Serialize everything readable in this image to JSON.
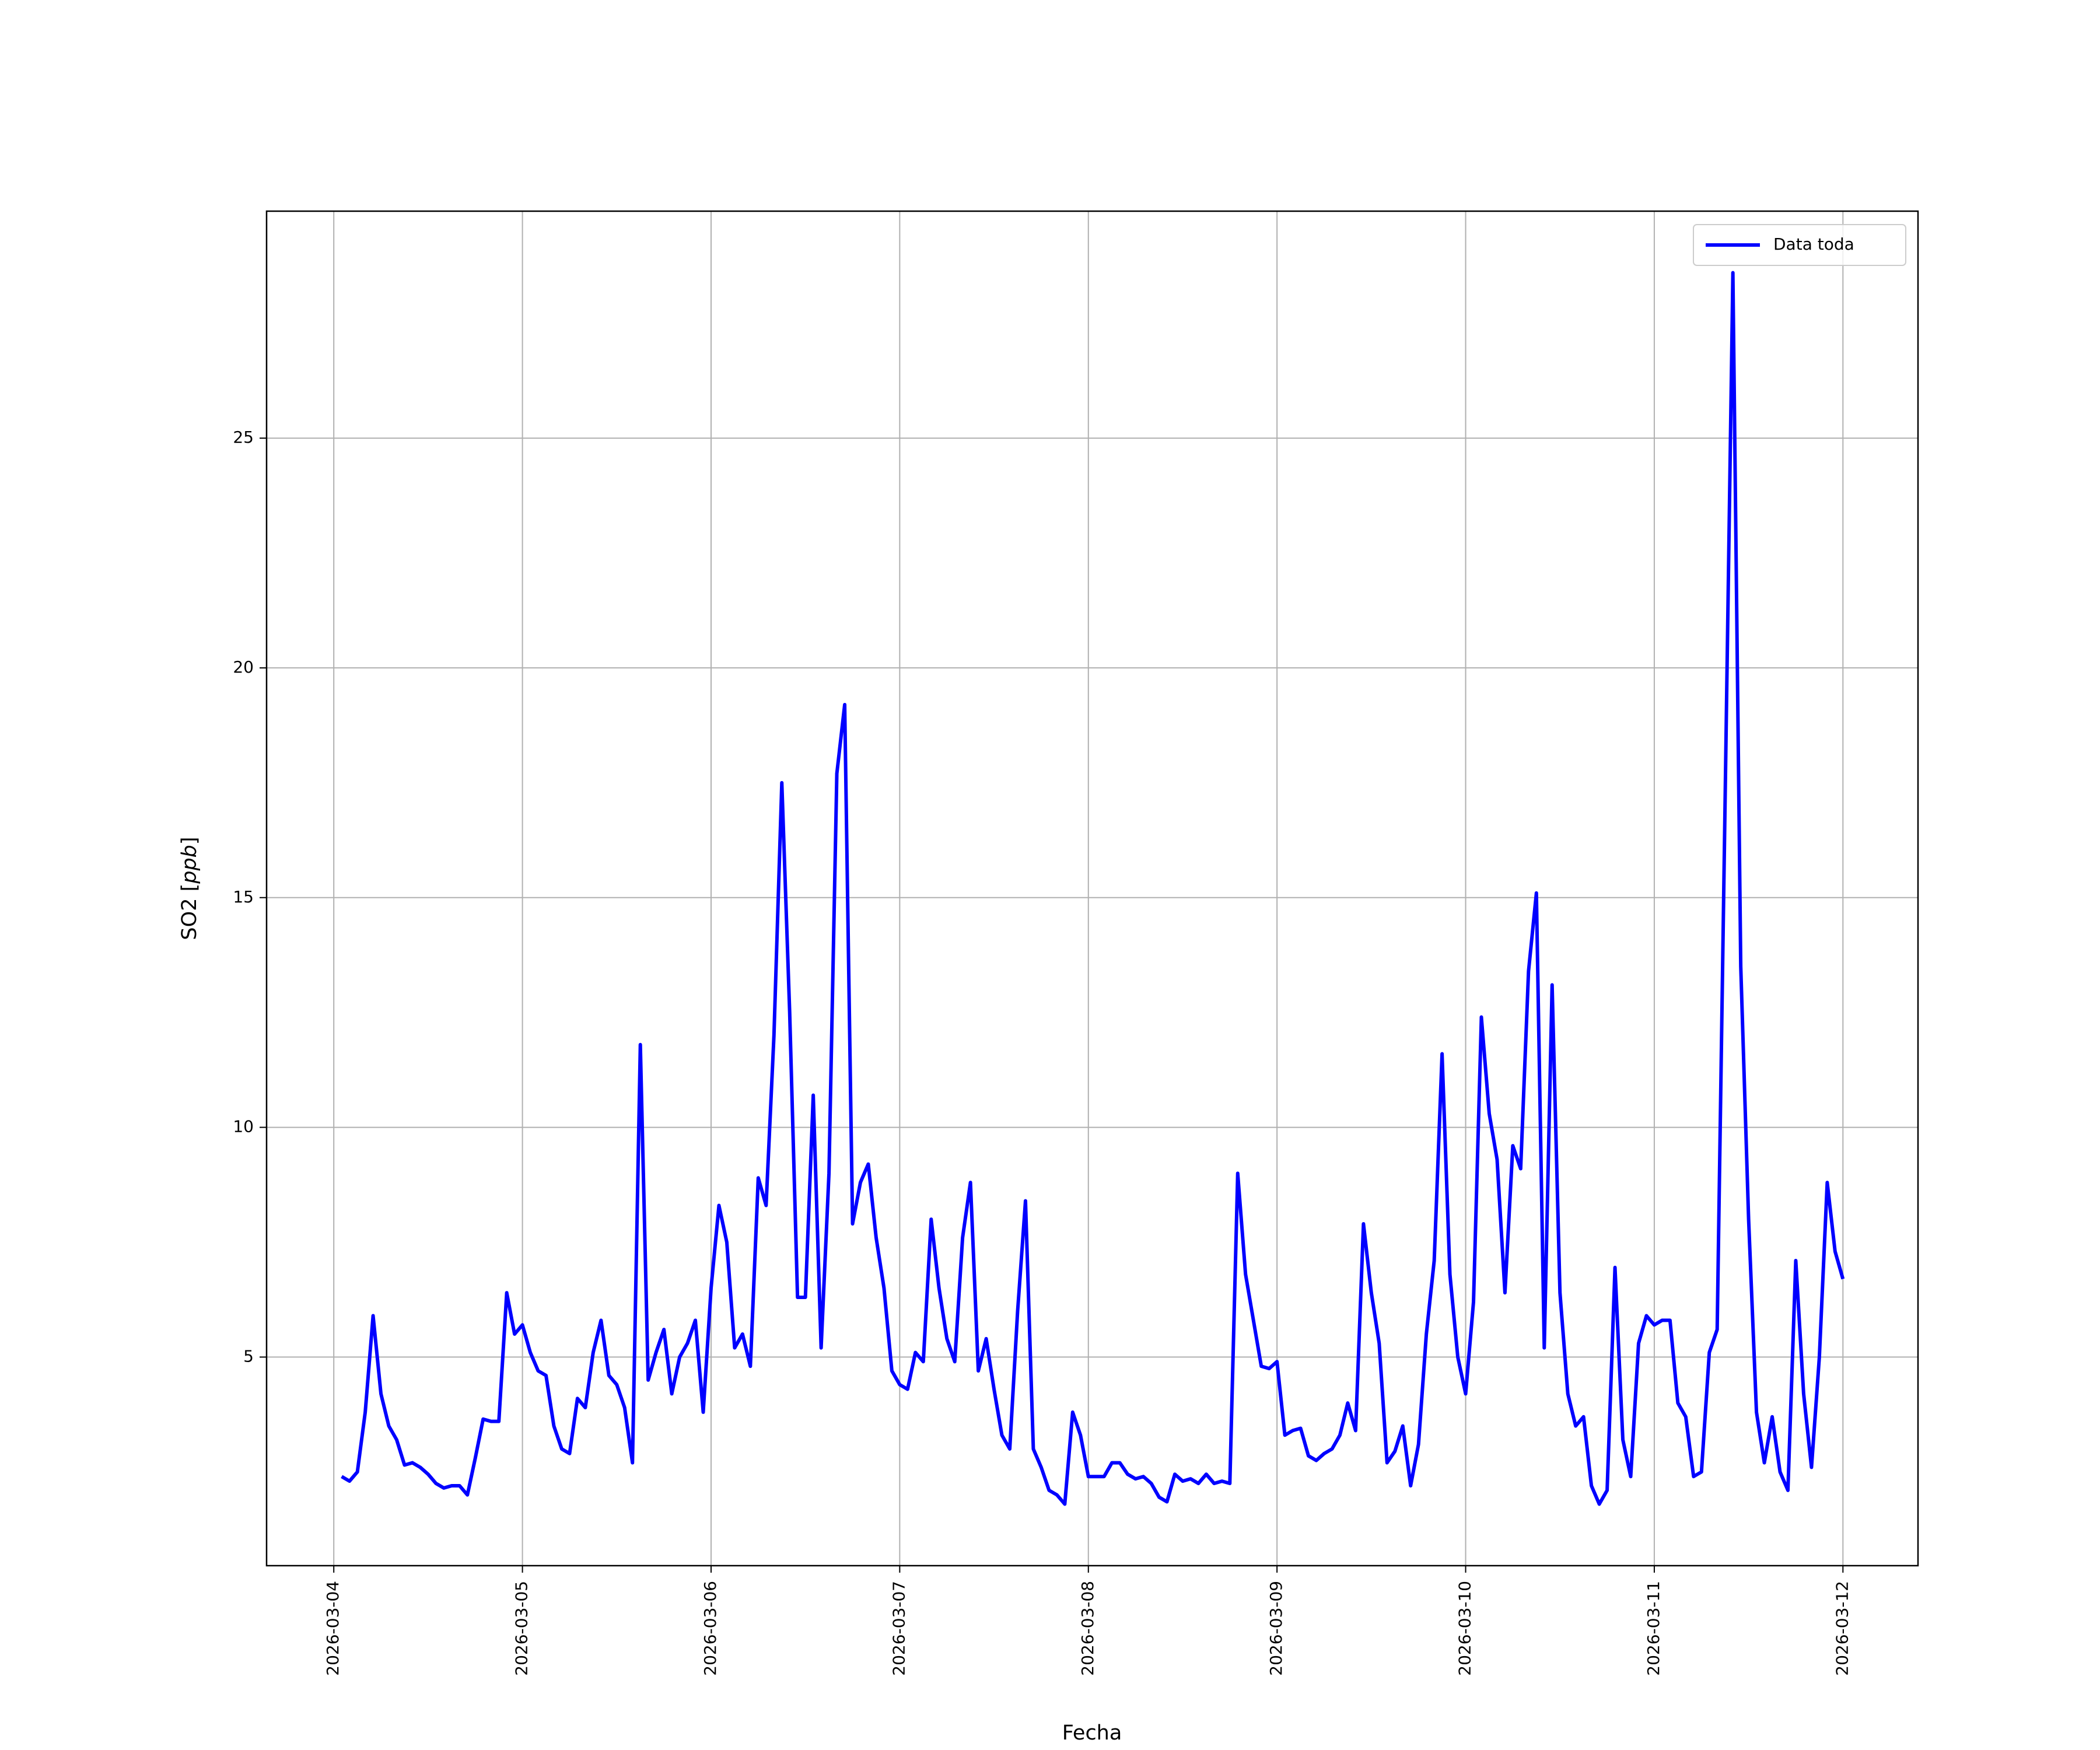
{
  "chart_data": {
    "type": "line",
    "xlabel": "Fecha",
    "ylabel": [
      "SO2 [",
      "ppb",
      "]"
    ],
    "grid": true,
    "legend": "upper right",
    "xlim": [
      "2026-03-03 15:27",
      "2026-03-12 09:33"
    ],
    "ylim": [
      0.46,
      29.94
    ],
    "yticks": [
      5,
      10,
      15,
      20,
      25
    ],
    "xticks": [
      "2026-03-04",
      "2026-03-05",
      "2026-03-06",
      "2026-03-07",
      "2026-03-08",
      "2026-03-09",
      "2026-03-10",
      "2026-03-11",
      "2026-03-12"
    ],
    "x": [
      "2026-03-04 01:00",
      "2026-03-04 02:00",
      "2026-03-04 03:00",
      "2026-03-04 04:00",
      "2026-03-04 05:00",
      "2026-03-04 06:00",
      "2026-03-04 07:00",
      "2026-03-04 08:00",
      "2026-03-04 09:00",
      "2026-03-04 10:00",
      "2026-03-04 11:00",
      "2026-03-04 12:00",
      "2026-03-04 13:00",
      "2026-03-04 14:00",
      "2026-03-04 15:00",
      "2026-03-04 16:00",
      "2026-03-04 17:00",
      "2026-03-04 18:00",
      "2026-03-04 19:00",
      "2026-03-04 20:00",
      "2026-03-04 21:00",
      "2026-03-04 22:00",
      "2026-03-04 23:00",
      "2026-03-05 00:00",
      "2026-03-05 01:00",
      "2026-03-05 02:00",
      "2026-03-05 03:00",
      "2026-03-05 04:00",
      "2026-03-05 05:00",
      "2026-03-05 06:00",
      "2026-03-05 07:00",
      "2026-03-05 08:00",
      "2026-03-05 09:00",
      "2026-03-05 10:00",
      "2026-03-05 11:00",
      "2026-03-05 12:00",
      "2026-03-05 13:00",
      "2026-03-05 14:00",
      "2026-03-05 15:00",
      "2026-03-05 16:00",
      "2026-03-05 17:00",
      "2026-03-05 18:00",
      "2026-03-05 19:00",
      "2026-03-05 20:00",
      "2026-03-05 21:00",
      "2026-03-05 22:00",
      "2026-03-05 23:00",
      "2026-03-06 00:00",
      "2026-03-06 01:00",
      "2026-03-06 02:00",
      "2026-03-06 03:00",
      "2026-03-06 04:00",
      "2026-03-06 05:00",
      "2026-03-06 06:00",
      "2026-03-06 07:00",
      "2026-03-06 08:00",
      "2026-03-06 09:00",
      "2026-03-06 10:00",
      "2026-03-06 11:00",
      "2026-03-06 12:00",
      "2026-03-06 13:00",
      "2026-03-06 14:00",
      "2026-03-06 15:00",
      "2026-03-06 16:00",
      "2026-03-06 17:00",
      "2026-03-06 18:00",
      "2026-03-06 19:00",
      "2026-03-06 20:00",
      "2026-03-06 21:00",
      "2026-03-06 22:00",
      "2026-03-06 23:00",
      "2026-03-07 00:00",
      "2026-03-07 01:00",
      "2026-03-07 02:00",
      "2026-03-07 03:00",
      "2026-03-07 04:00",
      "2026-03-07 05:00",
      "2026-03-07 06:00",
      "2026-03-07 07:00",
      "2026-03-07 08:00",
      "2026-03-07 09:00",
      "2026-03-07 10:00",
      "2026-03-07 11:00",
      "2026-03-07 12:00",
      "2026-03-07 13:00",
      "2026-03-07 14:00",
      "2026-03-07 15:00",
      "2026-03-07 16:00",
      "2026-03-07 17:00",
      "2026-03-07 18:00",
      "2026-03-07 19:00",
      "2026-03-07 20:00",
      "2026-03-07 21:00",
      "2026-03-07 22:00",
      "2026-03-07 23:00",
      "2026-03-08 00:00",
      "2026-03-08 01:00",
      "2026-03-08 02:00",
      "2026-03-08 03:00",
      "2026-03-08 04:00",
      "2026-03-08 05:00",
      "2026-03-08 06:00",
      "2026-03-08 07:00",
      "2026-03-08 08:00",
      "2026-03-08 09:00",
      "2026-03-08 10:00",
      "2026-03-08 11:00",
      "2026-03-08 12:00",
      "2026-03-08 13:00",
      "2026-03-08 14:00",
      "2026-03-08 15:00",
      "2026-03-08 16:00",
      "2026-03-08 17:00",
      "2026-03-08 18:00",
      "2026-03-08 19:00",
      "2026-03-08 20:00",
      "2026-03-08 21:00",
      "2026-03-08 22:00",
      "2026-03-08 23:00",
      "2026-03-09 00:00",
      "2026-03-09 01:00",
      "2026-03-09 02:00",
      "2026-03-09 03:00",
      "2026-03-09 04:00",
      "2026-03-09 05:00",
      "2026-03-09 06:00",
      "2026-03-09 07:00",
      "2026-03-09 08:00",
      "2026-03-09 09:00",
      "2026-03-09 10:00",
      "2026-03-09 11:00",
      "2026-03-09 12:00",
      "2026-03-09 13:00",
      "2026-03-09 14:00",
      "2026-03-09 15:00",
      "2026-03-09 16:00",
      "2026-03-09 17:00",
      "2026-03-09 18:00",
      "2026-03-09 19:00",
      "2026-03-09 20:00",
      "2026-03-09 21:00",
      "2026-03-09 22:00",
      "2026-03-09 23:00",
      "2026-03-10 00:00",
      "2026-03-10 01:00",
      "2026-03-10 02:00",
      "2026-03-10 03:00",
      "2026-03-10 04:00",
      "2026-03-10 05:00",
      "2026-03-10 06:00",
      "2026-03-10 07:00",
      "2026-03-10 08:00",
      "2026-03-10 09:00",
      "2026-03-10 10:00",
      "2026-03-10 11:00",
      "2026-03-10 12:00",
      "2026-03-10 13:00",
      "2026-03-10 14:00",
      "2026-03-10 15:00",
      "2026-03-10 16:00",
      "2026-03-10 17:00",
      "2026-03-10 18:00",
      "2026-03-10 19:00",
      "2026-03-10 20:00",
      "2026-03-10 21:00",
      "2026-03-10 22:00",
      "2026-03-10 23:00",
      "2026-03-11 00:00",
      "2026-03-11 01:00",
      "2026-03-11 02:00",
      "2026-03-11 03:00",
      "2026-03-11 04:00",
      "2026-03-11 05:00",
      "2026-03-11 06:00",
      "2026-03-11 07:00",
      "2026-03-11 08:00",
      "2026-03-11 09:00",
      "2026-03-11 10:00",
      "2026-03-11 11:00",
      "2026-03-11 12:00",
      "2026-03-11 13:00",
      "2026-03-11 14:00",
      "2026-03-11 15:00",
      "2026-03-11 16:00",
      "2026-03-11 17:00",
      "2026-03-11 18:00",
      "2026-03-11 19:00",
      "2026-03-11 20:00",
      "2026-03-11 21:00",
      "2026-03-11 22:00",
      "2026-03-11 23:00",
      "2026-03-12 00:00"
    ],
    "series": [
      {
        "name": "Data toda",
        "color": "#0000ff",
        "values": [
          2.4,
          2.3,
          2.5,
          3.8,
          5.9,
          4.2,
          3.5,
          3.2,
          2.65,
          2.7,
          2.6,
          2.45,
          2.25,
          2.15,
          2.2,
          2.2,
          2.0,
          2.8,
          3.65,
          3.6,
          3.6,
          6.4,
          5.5,
          5.7,
          5.1,
          4.7,
          4.6,
          3.5,
          3.0,
          2.9,
          4.1,
          3.9,
          5.1,
          5.8,
          4.6,
          4.4,
          3.9,
          2.7,
          11.8,
          4.5,
          5.1,
          5.6,
          4.2,
          5.0,
          5.3,
          5.8,
          3.8,
          6.5,
          8.3,
          7.5,
          5.2,
          5.5,
          4.8,
          8.9,
          8.3,
          12,
          17.5,
          12.5,
          6.3,
          6.3,
          10.7,
          5.2,
          9,
          17.7,
          19.2,
          7.9,
          8.8,
          9.2,
          7.6,
          6.5,
          4.7,
          4.4,
          4.3,
          5.1,
          4.9,
          8.0,
          6.5,
          5.4,
          4.9,
          7.6,
          8.8,
          4.7,
          5.4,
          4.3,
          3.3,
          3.0,
          6,
          8.4,
          3.0,
          2.6,
          2.1,
          2.0,
          1.8,
          3.8,
          3.3,
          2.4,
          2.4,
          2.4,
          2.7,
          2.7,
          2.45,
          2.35,
          2.4,
          2.25,
          1.95,
          1.85,
          2.45,
          2.3,
          2.35,
          2.25,
          2.45,
          2.25,
          2.3,
          2.25,
          9.0,
          6.8,
          5.8,
          4.8,
          4.75,
          4.9,
          3.3,
          3.4,
          3.45,
          2.85,
          2.75,
          2.9,
          3.0,
          3.3,
          4.0,
          3.4,
          7.9,
          6.4,
          5.3,
          2.7,
          2.95,
          3.5,
          2.2,
          3.1,
          5.5,
          7.1,
          11.6,
          6.8,
          5.0,
          4.2,
          6.2,
          12.4,
          10.3,
          9.3,
          6.4,
          9.6,
          9.1,
          13.4,
          15.1,
          5.2,
          13.1,
          6.4,
          4.2,
          3.5,
          3.7,
          2.2,
          1.8,
          2.1,
          6.95,
          3.2,
          2.4,
          5.3,
          5.9,
          5.7,
          5.8,
          5.8,
          4.0,
          3.7,
          2.4,
          2.5,
          5.1,
          5.6,
          17,
          28.6,
          13.5,
          8,
          3.8,
          2.7,
          3.7,
          2.5,
          2.1,
          7.1,
          4.2,
          2.6,
          5,
          8.8,
          7.3,
          6.7
        ]
      }
    ]
  }
}
